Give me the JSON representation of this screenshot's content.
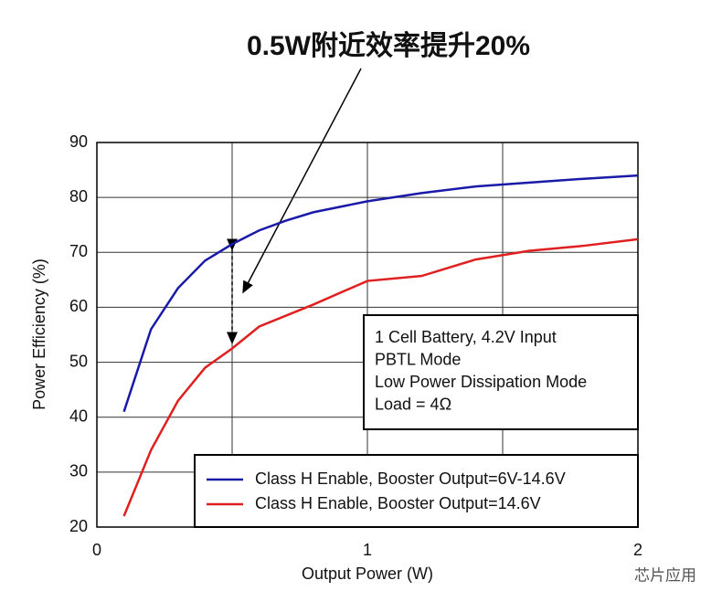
{
  "chart_data": {
    "type": "line",
    "annotation": "0.5W附近效率提升20%",
    "xlabel": "Output Power (W)",
    "ylabel": "Power Efficiency (%)",
    "xlim": [
      0,
      2
    ],
    "xticks": [
      0,
      1,
      2
    ],
    "xgrid": [
      0.5,
      1,
      1.5
    ],
    "ylim": [
      20,
      90
    ],
    "yticks": [
      20,
      30,
      40,
      50,
      60,
      70,
      80,
      90
    ],
    "grid": true,
    "note": [
      "1 Cell Battery, 4.2V Input",
      "PBTL Mode",
      "Low Power Dissipation Mode",
      "Load = 4Ω"
    ],
    "legend": "lower right",
    "watermark": "芯片应用",
    "x": [
      0.1,
      0.2,
      0.3,
      0.4,
      0.5,
      0.6,
      0.7,
      0.8,
      1.0,
      1.2,
      1.4,
      1.6,
      1.8,
      2.0
    ],
    "series": [
      {
        "name": "Class H Enable, Booster Output=6V-14.6V",
        "color": "#1a1aa8",
        "values": [
          41,
          56,
          63.5,
          68.5,
          71.5,
          74,
          75.8,
          77.3,
          79.3,
          80.8,
          82,
          82.7,
          83.4,
          84
        ]
      },
      {
        "name": "Class H Enable, Booster Output=14.6V",
        "color": "#e02020",
        "values": [
          22,
          34,
          43,
          49,
          52.5,
          56.5,
          58.5,
          60.5,
          64.8,
          65.7,
          68.7,
          70.3,
          71.2,
          72.4
        ]
      }
    ]
  }
}
